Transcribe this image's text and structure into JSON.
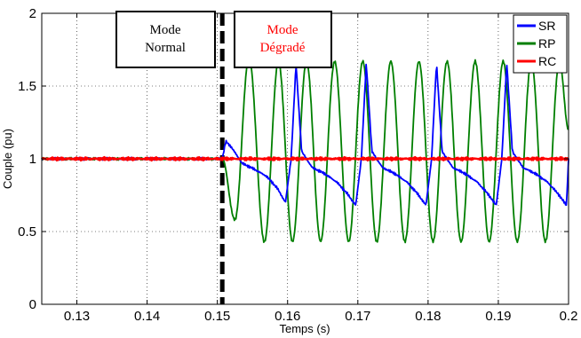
{
  "chart_data": {
    "type": "line",
    "xlabel": "Temps (s)",
    "ylabel": "Couple (pu)",
    "xlim": [
      0.125,
      0.2
    ],
    "ylim": [
      0,
      2
    ],
    "xticks": [
      0.13,
      0.14,
      0.15,
      0.16,
      0.17,
      0.18,
      0.19,
      0.2
    ],
    "xtick_labels": [
      "0.13",
      "0.14",
      "0.15",
      "0.16",
      "0.17",
      "0.18",
      "0.19",
      "0.2"
    ],
    "yticks": [
      0,
      0.5,
      1,
      1.5,
      2
    ],
    "ytick_labels": [
      "0",
      "0.5",
      "1",
      "1.5",
      "2"
    ],
    "grid": true,
    "legend_position": "top-right",
    "fault_time": 0.1507,
    "annotations": [
      {
        "lines": [
          "Mode",
          "Normal"
        ],
        "color": "#000000"
      },
      {
        "lines": [
          "Mode",
          "Dégradé"
        ],
        "color": "#ff0000"
      }
    ],
    "series": [
      {
        "name": "SR",
        "color": "#0000ff",
        "x": [
          0.125,
          0.1507,
          0.1512,
          0.152,
          0.1535,
          0.1552,
          0.157,
          0.1585,
          0.1597,
          0.1605,
          0.1612,
          0.162,
          0.1635,
          0.1652,
          0.167,
          0.1685,
          0.1697,
          0.1705,
          0.1712,
          0.172,
          0.1735,
          0.1752,
          0.177,
          0.1785,
          0.1797,
          0.1805,
          0.1812,
          0.182,
          0.1835,
          0.1852,
          0.187,
          0.1885,
          0.1897,
          0.1905,
          0.1912,
          0.192,
          0.1935,
          0.1952,
          0.197,
          0.1985,
          0.1997,
          0.2
        ],
        "y": [
          1.0,
          1.0,
          1.12,
          1.08,
          0.97,
          0.93,
          0.88,
          0.8,
          0.7,
          1.0,
          1.65,
          1.05,
          0.94,
          0.9,
          0.84,
          0.76,
          0.68,
          1.0,
          1.66,
          1.05,
          0.94,
          0.9,
          0.84,
          0.76,
          0.68,
          1.0,
          1.66,
          1.05,
          0.94,
          0.9,
          0.84,
          0.76,
          0.68,
          1.0,
          1.66,
          1.05,
          0.94,
          0.9,
          0.84,
          0.76,
          0.68,
          1.0
        ]
      },
      {
        "name": "RP",
        "color": "#007f00",
        "x": [
          0.125,
          0.1507,
          0.1525,
          0.1545,
          0.1567,
          0.1587,
          0.1607,
          0.1627,
          0.1647,
          0.1667,
          0.1687,
          0.1707,
          0.1727,
          0.1747,
          0.1767,
          0.1787,
          0.1807,
          0.1827,
          0.1847,
          0.1867,
          0.1887,
          0.1907,
          0.1927,
          0.1947,
          0.1967,
          0.1987,
          0.2
        ],
        "y": [
          1.0,
          1.0,
          0.58,
          1.7,
          0.43,
          1.67,
          0.43,
          1.67,
          0.43,
          1.67,
          0.43,
          1.67,
          0.43,
          1.67,
          0.43,
          1.67,
          0.43,
          1.67,
          0.43,
          1.67,
          0.43,
          1.67,
          0.43,
          1.67,
          0.43,
          1.67,
          1.2
        ]
      },
      {
        "name": "RC",
        "color": "#ff0000",
        "x": [
          0.125,
          0.2
        ],
        "y": [
          1.0,
          1.0
        ]
      }
    ]
  }
}
